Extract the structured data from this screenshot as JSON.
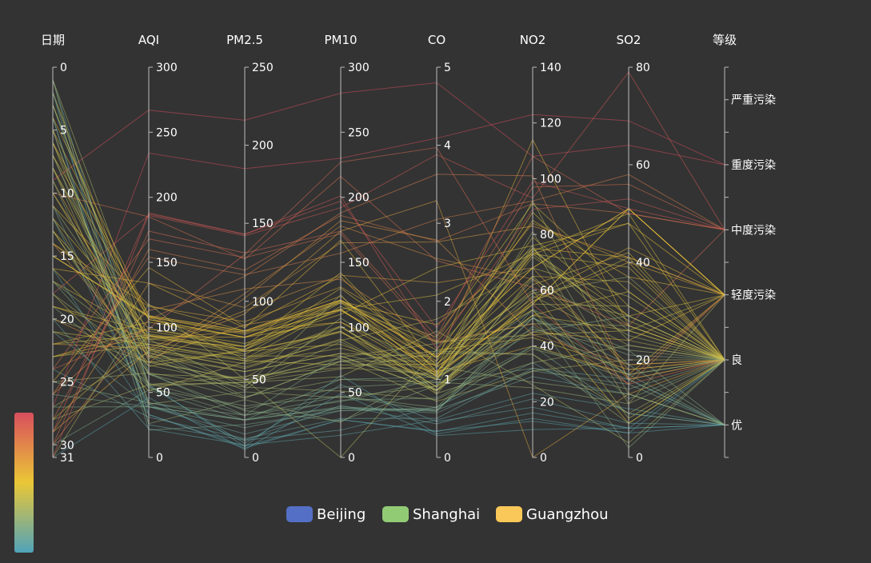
{
  "chart_data": {
    "type": "parallel",
    "axes": [
      {
        "name": "日期",
        "type": "value",
        "min": 0,
        "max": 31,
        "inverse": true,
        "ticks": [
          0,
          5,
          10,
          15,
          20,
          25,
          30,
          31
        ]
      },
      {
        "name": "AQI",
        "type": "value",
        "min": 0,
        "max": 300,
        "ticks": [
          0,
          50,
          100,
          150,
          200,
          250,
          300
        ]
      },
      {
        "name": "PM2.5",
        "type": "value",
        "min": 0,
        "max": 250,
        "ticks": [
          0,
          50,
          100,
          150,
          200,
          250
        ]
      },
      {
        "name": "PM10",
        "type": "value",
        "min": 0,
        "max": 300,
        "ticks": [
          0,
          50,
          100,
          150,
          200,
          250,
          300
        ]
      },
      {
        "name": "CO",
        "type": "value",
        "min": 0,
        "max": 5,
        "ticks": [
          0,
          1,
          2,
          3,
          4,
          5
        ]
      },
      {
        "name": "NO2",
        "type": "value",
        "min": 0,
        "max": 140,
        "ticks": [
          0,
          20,
          40,
          60,
          80,
          100,
          120,
          140
        ]
      },
      {
        "name": "SO2",
        "type": "value",
        "min": 0,
        "max": 80,
        "ticks": [
          0,
          20,
          40,
          60,
          80
        ]
      },
      {
        "name": "等级",
        "type": "category",
        "categories": [
          "优",
          "良",
          "轻度污染",
          "中度污染",
          "重度污染",
          "严重污染"
        ]
      }
    ],
    "series": [
      {
        "name": "Beijing",
        "color": "#5470c6",
        "data": [
          [
            1,
            55,
            9,
            56,
            0.46,
            18,
            6,
            "良"
          ],
          [
            2,
            25,
            11,
            21,
            0.65,
            34,
            9,
            "优"
          ],
          [
            3,
            56,
            7,
            63,
            0.3,
            14,
            5,
            "良"
          ],
          [
            4,
            33,
            7,
            29,
            0.33,
            16,
            6,
            "优"
          ],
          [
            5,
            42,
            24,
            44,
            0.76,
            40,
            16,
            "优"
          ],
          [
            6,
            82,
            58,
            90,
            1.77,
            68,
            33,
            "良"
          ],
          [
            7,
            74,
            49,
            77,
            1.46,
            48,
            27,
            "良"
          ],
          [
            8,
            78,
            55,
            80,
            1.29,
            59,
            29,
            "良"
          ],
          [
            9,
            267,
            216,
            280,
            4.8,
            108,
            64,
            "重度污染"
          ],
          [
            10,
            185,
            127,
            216,
            2.52,
            61,
            27,
            "中度污染"
          ],
          [
            11,
            39,
            19,
            38,
            0.57,
            31,
            15,
            "优"
          ],
          [
            12,
            41,
            11,
            40,
            0.43,
            21,
            7,
            "优"
          ],
          [
            13,
            64,
            38,
            74,
            1.04,
            46,
            22,
            "良"
          ],
          [
            14,
            108,
            79,
            120,
            1.7,
            75,
            41,
            "轻度污染"
          ],
          [
            15,
            108,
            63,
            116,
            1.48,
            44,
            26,
            "轻度污染"
          ],
          [
            16,
            33,
            6,
            29,
            0.34,
            13,
            5,
            "优"
          ],
          [
            17,
            94,
            66,
            119,
            1.54,
            91,
            34,
            "良"
          ],
          [
            18,
            186,
            142,
            192,
            3.88,
            93,
            79,
            "中度污染"
          ],
          [
            19,
            57,
            31,
            54,
            0.96,
            32,
            14,
            "良"
          ],
          [
            20,
            22,
            8,
            17,
            0.48,
            23,
            10,
            "优"
          ],
          [
            21,
            39,
            15,
            36,
            0.61,
            29,
            13,
            "优"
          ],
          [
            22,
            94,
            69,
            114,
            2.08,
            73,
            39,
            "良"
          ],
          [
            23,
            99,
            73,
            110,
            2.43,
            76,
            48,
            "良"
          ],
          [
            24,
            31,
            12,
            30,
            0.5,
            32,
            16,
            "优"
          ],
          [
            25,
            42,
            27,
            43,
            1,
            53,
            22,
            "优"
          ],
          [
            26,
            154,
            117,
            157,
            3.05,
            92,
            58,
            "中度污染"
          ],
          [
            27,
            234,
            185,
            230,
            4.09,
            123,
            69,
            "重度污染"
          ],
          [
            28,
            160,
            120,
            186,
            2.77,
            91,
            50,
            "中度污染"
          ],
          [
            29,
            134,
            96,
            165,
            2.76,
            83,
            41,
            "轻度污染"
          ],
          [
            30,
            52,
            24,
            60,
            1.03,
            50,
            21,
            "良"
          ],
          [
            31,
            46,
            5,
            49,
            0.28,
            10,
            6,
            "优"
          ]
        ]
      },
      {
        "name": "Shanghai",
        "color": "#91cc75",
        "data": [
          [
            1,
            26,
            37,
            27,
            1.163,
            27,
            13,
            "优"
          ],
          [
            2,
            85,
            62,
            71,
            1.195,
            60,
            8,
            "良"
          ],
          [
            3,
            78,
            38,
            74,
            1.363,
            37,
            7,
            "良"
          ],
          [
            4,
            21,
            21,
            36,
            0.634,
            40,
            9,
            "优"
          ],
          [
            5,
            41,
            42,
            46,
            0.915,
            81,
            13,
            "优"
          ],
          [
            6,
            56,
            52,
            69,
            1.067,
            92,
            16,
            "良"
          ],
          [
            7,
            64,
            30,
            28,
            0.924,
            51,
            2,
            "良"
          ],
          [
            8,
            55,
            48,
            74,
            1.236,
            75,
            26,
            "良"
          ],
          [
            9,
            76,
            85,
            113,
            1.237,
            114,
            27,
            "良"
          ],
          [
            10,
            91,
            81,
            104,
            1.041,
            56,
            40,
            "良"
          ],
          [
            11,
            84,
            39,
            60,
            0.964,
            25,
            11,
            "良"
          ],
          [
            12,
            64,
            51,
            101,
            0.862,
            58,
            23,
            "良"
          ],
          [
            13,
            70,
            69,
            120,
            1.198,
            65,
            36,
            "良"
          ],
          [
            14,
            77,
            105,
            178,
            2.549,
            64,
            16,
            "良"
          ],
          [
            15,
            109,
            68,
            87,
            0.996,
            74,
            29,
            "轻度污染"
          ],
          [
            16,
            73,
            68,
            97,
            0.905,
            51,
            34,
            "良"
          ],
          [
            17,
            54,
            27,
            47,
            0.592,
            53,
            12,
            "良"
          ],
          [
            18,
            51,
            61,
            97,
            0.811,
            65,
            19,
            "良"
          ],
          [
            19,
            91,
            71,
            121,
            1.374,
            43,
            18,
            "良"
          ],
          [
            20,
            73,
            102,
            182,
            2.787,
            44,
            19,
            "良"
          ],
          [
            21,
            73,
            50,
            76,
            0.717,
            31,
            20,
            "良"
          ],
          [
            22,
            84,
            94,
            140,
            2.238,
            68,
            18,
            "良"
          ],
          [
            23,
            93,
            77,
            104,
            1.165,
            53,
            7,
            "良"
          ],
          [
            24,
            99,
            130,
            227,
            3.97,
            55,
            15,
            "良"
          ],
          [
            25,
            146,
            84,
            139,
            1.094,
            40,
            17,
            "轻度污染"
          ],
          [
            26,
            113,
            108,
            137,
            1.481,
            48,
            15,
            "轻度污染"
          ],
          [
            27,
            81,
            48,
            62,
            1.619,
            26,
            3,
            "良"
          ],
          [
            28,
            56,
            48,
            68,
            1.336,
            37,
            9,
            "良"
          ],
          [
            29,
            82,
            92,
            174,
            3.29,
            0,
            13,
            "良"
          ],
          [
            30,
            106,
            116,
            188,
            3.628,
            101,
            16,
            "轻度污染"
          ],
          [
            31,
            118,
            50,
            0,
            1.383,
            76,
            11,
            "轻度污染"
          ]
        ]
      },
      {
        "name": "Guangzhou",
        "color": "#fac858",
        "data": [
          [
            1,
            91,
            45,
            125,
            0.82,
            34,
            23,
            "良"
          ],
          [
            2,
            65,
            27,
            78,
            0.86,
            45,
            29,
            "良"
          ],
          [
            3,
            83,
            60,
            84,
            1.09,
            73,
            27,
            "良"
          ],
          [
            4,
            109,
            81,
            121,
            1.28,
            68,
            51,
            "轻度污染"
          ],
          [
            5,
            106,
            77,
            114,
            1.07,
            55,
            51,
            "轻度污染"
          ],
          [
            6,
            109,
            81,
            121,
            1.28,
            68,
            51,
            "轻度污染"
          ],
          [
            7,
            106,
            77,
            114,
            1.07,
            55,
            51,
            "轻度污染"
          ],
          [
            8,
            89,
            65,
            78,
            0.86,
            51,
            26,
            "良"
          ],
          [
            9,
            53,
            33,
            47,
            0.64,
            50,
            17,
            "良"
          ],
          [
            10,
            80,
            55,
            80,
            1.01,
            75,
            24,
            "良"
          ],
          [
            11,
            117,
            81,
            124,
            1.03,
            45,
            24,
            "轻度污染"
          ],
          [
            12,
            99,
            71,
            142,
            1.1,
            62,
            42,
            "良"
          ],
          [
            13,
            95,
            69,
            130,
            1.28,
            74,
            50,
            "良"
          ],
          [
            14,
            116,
            87,
            131,
            1.47,
            84,
            40,
            "轻度污染"
          ],
          [
            15,
            108,
            80,
            121,
            1.3,
            85,
            37,
            "轻度污染"
          ],
          [
            16,
            134,
            83,
            167,
            1.16,
            57,
            43,
            "轻度污染"
          ],
          [
            17,
            79,
            43,
            107,
            1.05,
            59,
            37,
            "良"
          ],
          [
            18,
            71,
            46,
            89,
            0.86,
            64,
            25,
            "良"
          ],
          [
            19,
            97,
            71,
            113,
            1.17,
            88,
            31,
            "良"
          ],
          [
            20,
            84,
            57,
            91,
            0.85,
            55,
            31,
            "良"
          ],
          [
            21,
            87,
            63,
            101,
            0.9,
            56,
            41,
            "良"
          ],
          [
            22,
            104,
            77,
            119,
            1.09,
            73,
            48,
            "轻度污染"
          ],
          [
            23,
            87,
            62,
            100,
            1,
            72,
            28,
            "良"
          ],
          [
            24,
            168,
            128,
            172,
            1.49,
            97,
            56,
            "中度污染"
          ],
          [
            25,
            65,
            45,
            51,
            0.74,
            39,
            17,
            "良"
          ],
          [
            26,
            39,
            24,
            38,
            0.61,
            47,
            17,
            "优"
          ],
          [
            27,
            39,
            24,
            39,
            0.59,
            50,
            19,
            "优"
          ],
          [
            28,
            93,
            68,
            96,
            1.05,
            79,
            29,
            "良"
          ],
          [
            29,
            188,
            143,
            197,
            1.66,
            99,
            51,
            "中度污染"
          ],
          [
            30,
            174,
            131,
            174,
            1.55,
            108,
            50,
            "中度污染"
          ],
          [
            31,
            187,
            143,
            201,
            1.39,
            89,
            53,
            "中度污染"
          ]
        ]
      }
    ],
    "visual_map": {
      "dimension": 2,
      "min": 0,
      "max": 150,
      "colors": [
        "#d94e5d",
        "#eac736",
        "#50a3ba"
      ]
    },
    "legend": {
      "position": "bottom",
      "items": [
        "Beijing",
        "Shanghai",
        "Guangzhou"
      ]
    }
  }
}
